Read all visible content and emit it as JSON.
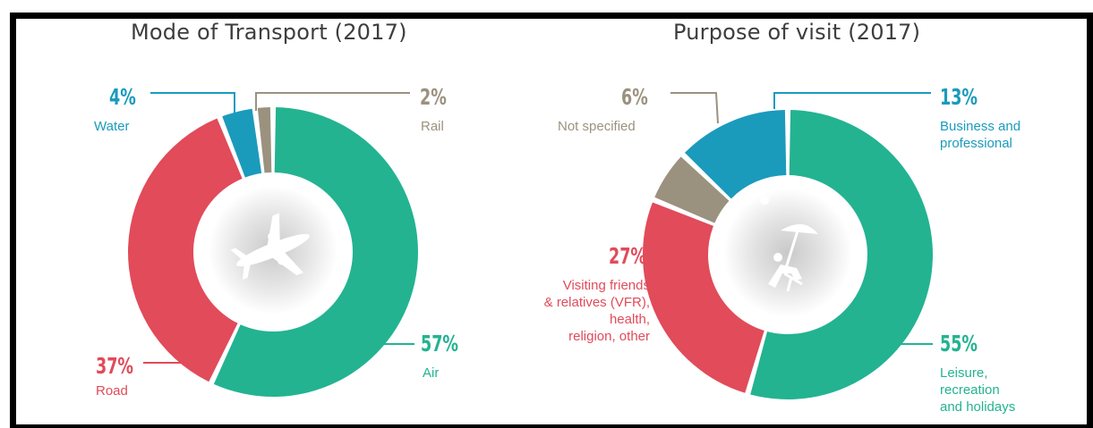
{
  "colors": {
    "air": "#23b391",
    "road": "#e14b5a",
    "water": "#1a9bbc",
    "rail": "#9b917f",
    "leisure": "#23b391",
    "vfr": "#e14b5a",
    "business": "#1a9bbc",
    "not_specified": "#9b917f"
  },
  "chart_data": [
    {
      "type": "pie",
      "title": "Mode of Transport (2017)",
      "slices": [
        {
          "pct_label": "57%",
          "name": "Air",
          "value": 57,
          "color": "#23b391"
        },
        {
          "pct_label": "37%",
          "name": "Road",
          "value": 37,
          "color": "#e14b5a"
        },
        {
          "pct_label": "4%",
          "name": "Water",
          "value": 4,
          "color": "#1a9bbc"
        },
        {
          "pct_label": "2%",
          "name": "Rail",
          "value": 2,
          "color": "#9b917f"
        }
      ],
      "center_icon": "airplane-icon"
    },
    {
      "type": "pie",
      "title": "Purpose of visit (2017)",
      "slices": [
        {
          "pct_label": "55%",
          "name": "Leisure, recreation and holidays",
          "value": 55,
          "color": "#23b391"
        },
        {
          "pct_label": "27%",
          "name": "Visiting friends & relatives (VFR), health, religion, other",
          "value": 27,
          "color": "#e14b5a"
        },
        {
          "pct_label": "6%",
          "name": "Not specified",
          "value": 6,
          "color": "#9b917f"
        },
        {
          "pct_label": "13%",
          "name": "Business and professional",
          "value": 13,
          "color": "#1a9bbc"
        }
      ],
      "center_icon": "beach-chair-umbrella-icon"
    }
  ],
  "labels": {
    "transport": {
      "air_pct": "57%",
      "air": "Air",
      "road_pct": "37%",
      "road": "Road",
      "water_pct": "4%",
      "water": "Water",
      "rail_pct": "2%",
      "rail": "Rail"
    },
    "purpose": {
      "leisure_pct": "55%",
      "leisure_1": "Leisure,",
      "leisure_2": "recreation",
      "leisure_3": "and holidays",
      "vfr_pct": "27%",
      "vfr_1": "Visiting friends",
      "vfr_2": "& relatives (VFR),",
      "vfr_3": "health,",
      "vfr_4": "religion, other",
      "ns_pct": "6%",
      "ns": "Not specified",
      "biz_pct": "13%",
      "biz_1": "Business and",
      "biz_2": "professional"
    }
  }
}
